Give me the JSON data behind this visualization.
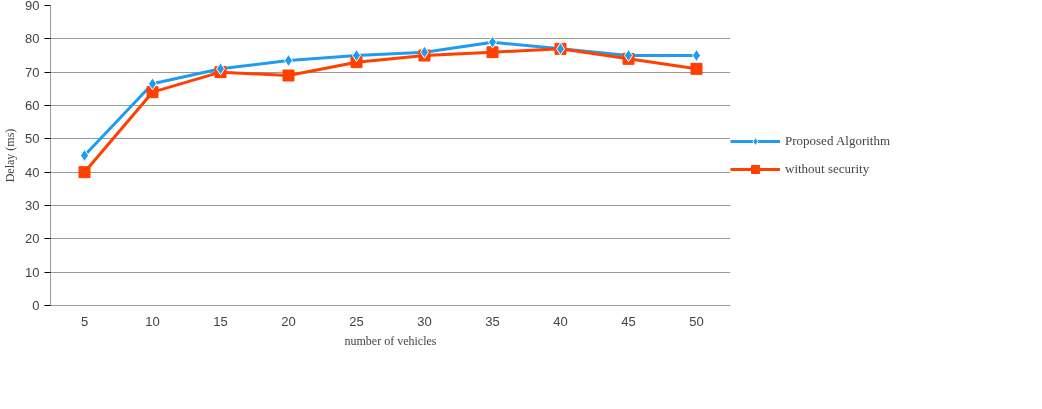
{
  "chart_data": {
    "type": "line",
    "xlabel": "number of vehicles",
    "ylabel": "Delay (ms)",
    "categories": [
      "5",
      "10",
      "15",
      "20",
      "25",
      "30",
      "35",
      "40",
      "45",
      "50"
    ],
    "series": [
      {
        "name": "Proposed Algorithm",
        "color": "#1e9cf0",
        "marker": "diamond",
        "values": [
          45,
          66.5,
          71,
          73.5,
          75,
          76,
          79,
          77,
          75,
          75
        ]
      },
      {
        "name": "without security",
        "color": "#ff4000",
        "marker": "square",
        "values": [
          40,
          64,
          70,
          69,
          73,
          75,
          76,
          77,
          74,
          71
        ]
      }
    ],
    "ylim": [
      0,
      90
    ],
    "yticks": [
      0,
      10,
      20,
      30,
      40,
      50,
      60,
      70,
      80,
      90
    ],
    "grid": "y",
    "legend": "right",
    "line_style": "solid"
  }
}
